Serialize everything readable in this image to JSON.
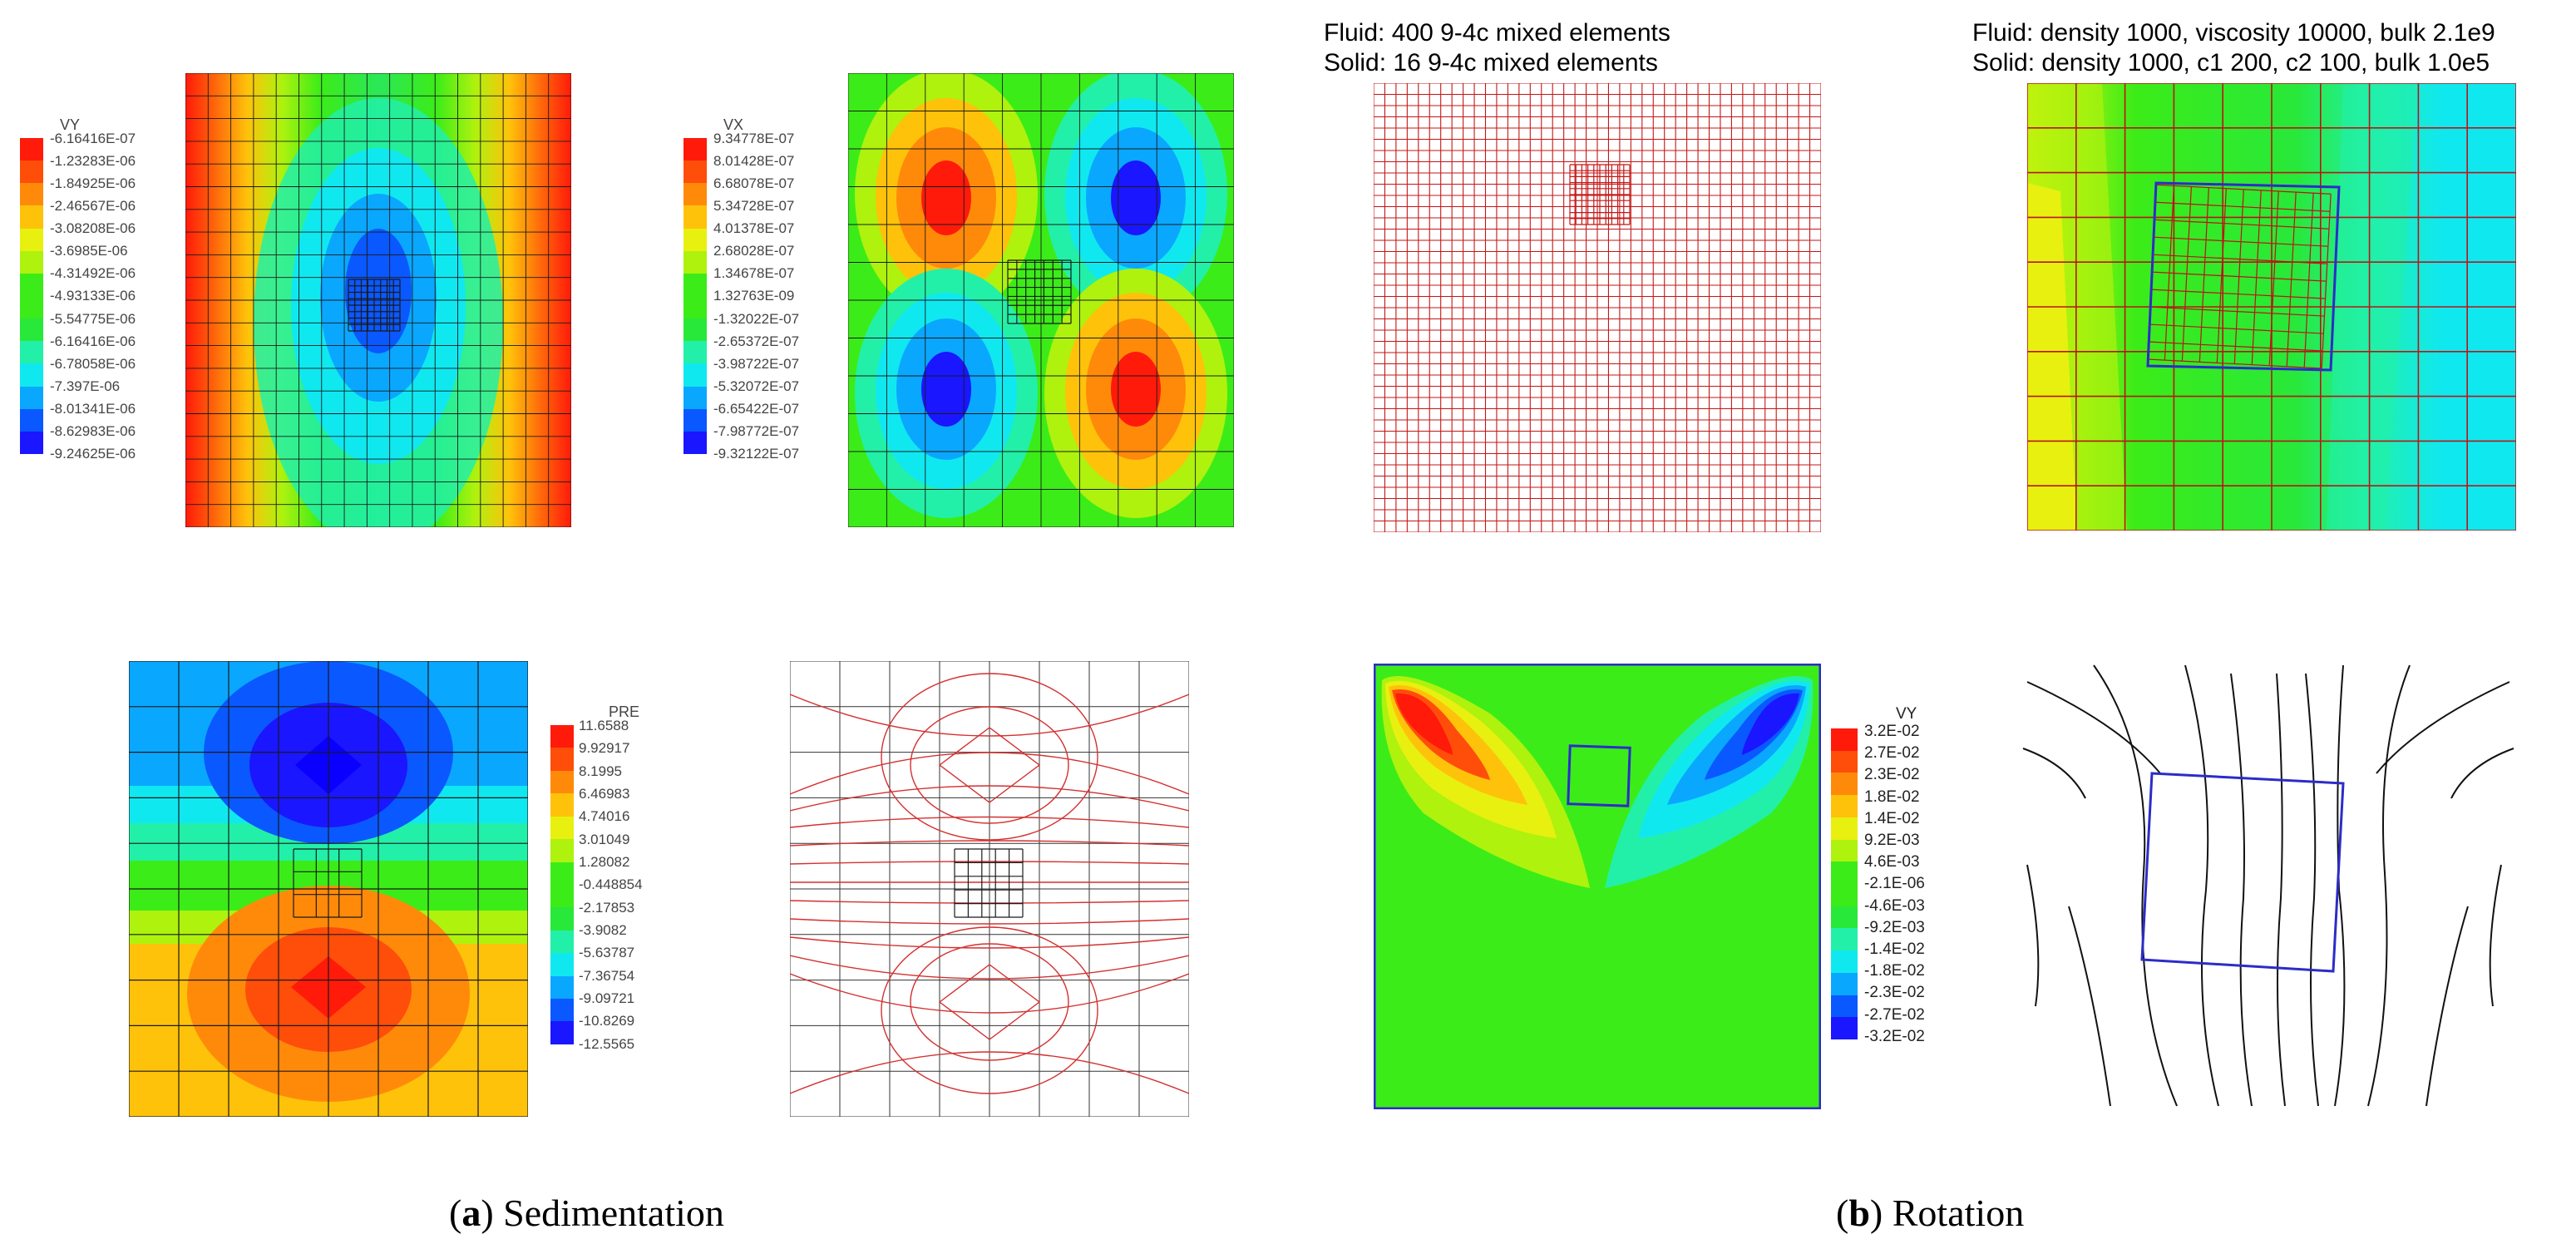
{
  "colors": {
    "ramp": [
      "#1a16ff",
      "#0a58ff",
      "#0aa7ff",
      "#10e8f0",
      "#22f0a8",
      "#28e83a",
      "#3cec18",
      "#aef20e",
      "#e8f010",
      "#ffc20a",
      "#ff8a0a",
      "#ff4d0a",
      "#ff1a0a"
    ],
    "grid_dark": "#1a1a1a",
    "grid_red": "#c41616",
    "box_blue": "#2c2cc8",
    "stream": "#111111"
  },
  "panel_a1": {
    "legend_title": "VY",
    "legend_values": [
      "-6.16416E-07",
      "-1.23283E-06",
      "-1.84925E-06",
      "-2.46567E-06",
      "-3.08208E-06",
      "-3.6985E-06",
      "-4.31492E-06",
      "-4.93133E-06",
      "-5.54775E-06",
      "-6.16416E-06",
      "-6.78058E-06",
      "-7.397E-06",
      "-8.01341E-06",
      "-8.62983E-06",
      "-9.24625E-06"
    ]
  },
  "panel_a2": {
    "legend_title": "VX",
    "legend_values": [
      "9.34778E-07",
      "8.01428E-07",
      "6.68078E-07",
      "5.34728E-07",
      "4.01378E-07",
      "2.68028E-07",
      "1.34678E-07",
      "1.32763E-09",
      "-1.32022E-07",
      "-2.65372E-07",
      "-3.98722E-07",
      "-5.32072E-07",
      "-6.65422E-07",
      "-7.98772E-07",
      "-9.32122E-07"
    ]
  },
  "panel_a3": {
    "legend_title": "PRE",
    "legend_values": [
      "11.6588",
      "9.92917",
      "8.1995",
      "6.46983",
      "4.74016",
      "3.01049",
      "1.28082",
      "-0.448854",
      "-2.17853",
      "-3.9082",
      "-5.63787",
      "-7.36754",
      "-9.09721",
      "-10.8269",
      "-12.5565"
    ]
  },
  "panel_b1": {
    "line1": "Fluid: 400 9-4c mixed elements",
    "line2": "Solid: 16 9-4c mixed elements"
  },
  "panel_b2": {
    "line1": "Fluid: density 1000, viscosity 10000, bulk 2.1e9",
    "line2": "Solid: density 1000, c1 200, c2 100, bulk 1.0e5"
  },
  "panel_b3": {
    "legend_title": "VY",
    "legend_values": [
      "3.2E-02",
      "2.7E-02",
      "2.3E-02",
      "1.8E-02",
      "1.4E-02",
      "9.2E-03",
      "4.6E-03",
      "-2.1E-06",
      "-4.6E-03",
      "-9.2E-03",
      "-1.4E-02",
      "-1.8E-02",
      "-2.3E-02",
      "-2.7E-02",
      "-3.2E-02"
    ]
  },
  "captions": {
    "a_label": "a",
    "a_text": " Sedimentation",
    "b_label": "b",
    "b_text": " Rotation"
  }
}
